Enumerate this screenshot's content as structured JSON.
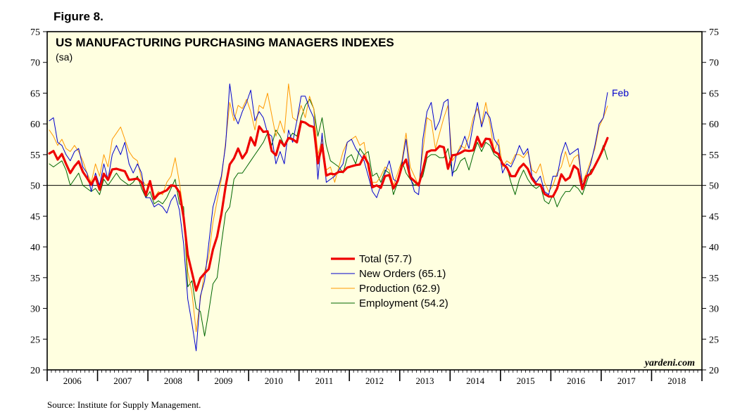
{
  "figure_label": "Figure 8.",
  "source": "Source: Institute for Supply Management.",
  "watermark": "yardeni.com",
  "colors": {
    "plot_background": "#ffffe0",
    "total": "#ee0000",
    "new_orders": "#0000cc",
    "production": "#ff9900",
    "employment": "#006600"
  },
  "chart_data": {
    "type": "line",
    "title": "US MANUFACTURING PURCHASING MANAGERS INDEXES",
    "subtitle": "(sa)",
    "ylim": [
      20,
      75
    ],
    "yticks": [
      "20",
      "25",
      "30",
      "35",
      "40",
      "45",
      "50",
      "55",
      "60",
      "65",
      "70",
      "75"
    ],
    "x_start": "2006-01",
    "x_end": "2018-12",
    "year_labels": [
      "2006",
      "2007",
      "2008",
      "2009",
      "2010",
      "2011",
      "2012",
      "2013",
      "2014",
      "2015",
      "2016",
      "2017",
      "2018"
    ],
    "reference_line": 50,
    "end_label": "Feb",
    "legend_position": "center",
    "series": [
      {
        "name": "Total (57.7)",
        "key": "total",
        "values": [
          55.2,
          55.6,
          54.2,
          55.1,
          53.5,
          52.0,
          53.1,
          53.9,
          52.2,
          51.2,
          50.1,
          51.4,
          49.3,
          51.9,
          50.9,
          52.6,
          52.7,
          52.5,
          52.3,
          50.9,
          51.0,
          51.1,
          50.5,
          48.4,
          50.7,
          47.8,
          48.6,
          48.9,
          49.2,
          50.0,
          49.9,
          48.9,
          44.8,
          38.7,
          35.8,
          32.9,
          34.9,
          35.7,
          36.4,
          39.6,
          41.7,
          45.3,
          49.8,
          53.4,
          54.4,
          56.0,
          54.4,
          55.4,
          57.8,
          56.5,
          59.6,
          58.7,
          58.8,
          55.6,
          54.9,
          57.3,
          56.4,
          57.7,
          57.5,
          57.0,
          60.4,
          60.2,
          59.7,
          59.5,
          53.6,
          56.6,
          51.6,
          51.9,
          51.8,
          52.2,
          52.2,
          52.9,
          53.1,
          53.3,
          53.4,
          54.8,
          53.5,
          49.7,
          50.0,
          49.6,
          51.5,
          51.7,
          49.5,
          50.7,
          53.1,
          54.2,
          51.3,
          50.7,
          50.0,
          52.5,
          55.4,
          55.7,
          55.7,
          56.4,
          56.2,
          52.7,
          54.9,
          55.0,
          55.3,
          55.7,
          55.6,
          55.7,
          57.9,
          56.3,
          57.6,
          57.5,
          55.5,
          55.1,
          53.5,
          52.9,
          51.5,
          51.5,
          52.8,
          53.5,
          52.7,
          51.1,
          50.2,
          50.1,
          48.6,
          48.2,
          48.2,
          49.5,
          51.8,
          50.8,
          51.3,
          53.2,
          52.6,
          49.4,
          51.5,
          51.9,
          53.2,
          54.5,
          56.0,
          57.7
        ]
      },
      {
        "name": "New Orders (65.1)",
        "key": "new_orders",
        "values": [
          60.5,
          61.0,
          57.0,
          56.5,
          55.0,
          54.0,
          55.5,
          56.0,
          53.0,
          52.0,
          49.0,
          52.0,
          50.0,
          53.5,
          51.0,
          55.0,
          56.5,
          55.0,
          57.0,
          53.5,
          52.0,
          53.5,
          52.0,
          48.0,
          48.0,
          46.5,
          47.0,
          46.5,
          45.5,
          47.5,
          48.5,
          46.0,
          40.5,
          31.5,
          27.5,
          23.1,
          32.0,
          34.5,
          40.5,
          46.5,
          49.0,
          51.5,
          56.5,
          66.5,
          61.5,
          60.0,
          62.0,
          63.5,
          65.5,
          60.5,
          62.0,
          61.0,
          58.5,
          58.0,
          53.5,
          55.5,
          53.5,
          59.0,
          57.0,
          60.5,
          64.5,
          64.5,
          62.5,
          61.0,
          51.0,
          58.5,
          50.5,
          51.0,
          51.5,
          52.5,
          53.5,
          57.0,
          57.5,
          56.0,
          55.0,
          54.0,
          51.5,
          49.0,
          48.0,
          50.0,
          52.0,
          54.0,
          51.0,
          50.5,
          53.5,
          57.5,
          51.5,
          49.0,
          48.5,
          57.5,
          62.0,
          63.5,
          59.0,
          60.5,
          63.5,
          64.0,
          51.5,
          55.0,
          56.0,
          58.0,
          56.0,
          60.0,
          63.5,
          59.5,
          62.0,
          61.0,
          57.5,
          56.5,
          52.0,
          53.5,
          53.0,
          54.5,
          56.5,
          55.0,
          56.0,
          51.5,
          50.5,
          51.5,
          49.0,
          48.5,
          51.5,
          51.5,
          55.0,
          57.0,
          55.0,
          55.5,
          56.0,
          50.0,
          51.5,
          53.5,
          56.5,
          60.0,
          61.0,
          65.1
        ]
      },
      {
        "name": "Production (62.9)",
        "key": "production",
        "values": [
          59.0,
          58.0,
          56.5,
          57.5,
          56.0,
          55.5,
          56.5,
          55.5,
          54.0,
          52.0,
          50.5,
          53.5,
          51.5,
          55.0,
          53.0,
          57.5,
          58.5,
          59.5,
          57.5,
          55.5,
          54.5,
          54.0,
          51.0,
          50.0,
          50.5,
          48.0,
          49.0,
          48.5,
          50.5,
          51.5,
          54.5,
          50.5,
          45.5,
          36.0,
          32.5,
          26.2,
          31.5,
          36.0,
          38.5,
          44.0,
          47.5,
          51.0,
          57.0,
          63.5,
          60.5,
          63.0,
          62.5,
          64.0,
          62.0,
          59.0,
          63.0,
          62.5,
          65.0,
          61.5,
          58.0,
          60.5,
          58.5,
          66.5,
          61.0,
          60.5,
          63.0,
          61.0,
          64.5,
          62.5,
          55.0,
          57.5,
          52.5,
          53.0,
          50.5,
          53.0,
          55.5,
          57.0,
          57.5,
          58.0,
          56.5,
          57.0,
          52.5,
          50.5,
          50.5,
          51.5,
          53.0,
          52.5,
          50.0,
          52.0,
          54.0,
          58.5,
          53.0,
          51.5,
          50.0,
          55.5,
          61.0,
          60.5,
          56.0,
          58.5,
          61.0,
          63.0,
          54.0,
          55.0,
          56.5,
          56.0,
          58.0,
          61.0,
          62.5,
          60.0,
          63.5,
          60.0,
          55.5,
          57.5,
          53.0,
          54.0,
          53.5,
          55.0,
          55.0,
          54.5,
          55.5,
          52.5,
          52.0,
          53.5,
          50.5,
          49.0,
          50.0,
          52.0,
          53.0,
          55.5,
          53.0,
          54.5,
          55.0,
          50.5,
          52.0,
          54.0,
          56.0,
          59.5,
          61.0,
          62.9
        ]
      },
      {
        "name": "Employment (54.2)",
        "key": "employment",
        "values": [
          53.5,
          53.0,
          53.5,
          54.0,
          52.5,
          50.0,
          51.0,
          52.0,
          50.0,
          49.5,
          49.0,
          49.5,
          48.5,
          51.0,
          50.0,
          51.0,
          52.0,
          51.0,
          50.5,
          50.0,
          50.5,
          51.5,
          49.5,
          48.0,
          49.0,
          47.0,
          47.5,
          47.0,
          48.0,
          49.5,
          51.0,
          47.0,
          46.5,
          33.5,
          34.5,
          30.0,
          29.5,
          25.5,
          29.5,
          34.0,
          35.0,
          40.5,
          45.5,
          46.5,
          51.0,
          52.0,
          52.0,
          53.0,
          54.0,
          55.0,
          56.0,
          57.0,
          58.5,
          56.5,
          59.0,
          58.0,
          56.5,
          57.5,
          58.5,
          58.0,
          61.0,
          63.0,
          64.0,
          62.5,
          58.0,
          61.0,
          56.5,
          54.0,
          53.5,
          53.0,
          52.0,
          54.5,
          55.0,
          53.5,
          56.0,
          55.0,
          55.5,
          51.5,
          52.0,
          50.5,
          52.5,
          52.0,
          48.5,
          50.5,
          54.0,
          52.0,
          51.0,
          50.0,
          50.5,
          51.5,
          54.5,
          55.0,
          55.0,
          54.5,
          54.5,
          56.0,
          52.0,
          52.5,
          54.0,
          54.5,
          52.5,
          55.0,
          57.0,
          55.5,
          57.0,
          56.5,
          55.0,
          54.5,
          53.5,
          53.0,
          50.5,
          48.5,
          51.0,
          52.5,
          51.0,
          50.0,
          49.5,
          50.0,
          47.5,
          47.0,
          48.5,
          46.5,
          48.0,
          49.0,
          49.0,
          50.0,
          49.5,
          48.5,
          50.5,
          52.5,
          53.0,
          54.5,
          56.5,
          54.2
        ]
      }
    ]
  }
}
